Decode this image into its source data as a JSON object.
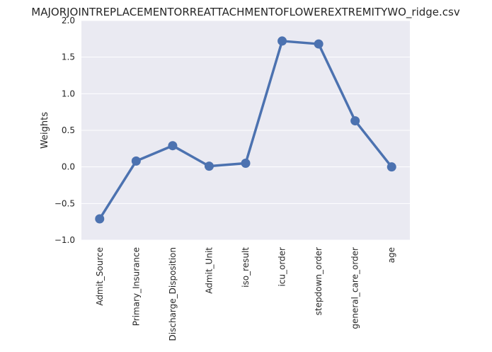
{
  "chart_data": {
    "type": "line",
    "title": "MAJORJOINTREPLACEMENTORREATTACHMENTOFLOWEREXTREMITYWO_ridge.csv",
    "xlabel": "",
    "ylabel": "Weights",
    "categories": [
      "Admit_Source",
      "Primary_Insurance",
      "Discharge_Disposition",
      "Admit_Unit",
      "iso_result",
      "icu_order",
      "stepdown_order",
      "general_care_order",
      "age"
    ],
    "values": [
      -0.71,
      0.08,
      0.29,
      0.01,
      0.05,
      1.72,
      1.68,
      0.63,
      0.0
    ],
    "ylim": [
      -1.0,
      2.0
    ],
    "yticks": [
      "−1.0",
      "−0.5",
      "0.0",
      "0.5",
      "1.0",
      "1.5",
      "2.0"
    ],
    "grid": true,
    "line_color": "#4c72b0",
    "background_color": "#eaeaf2"
  }
}
